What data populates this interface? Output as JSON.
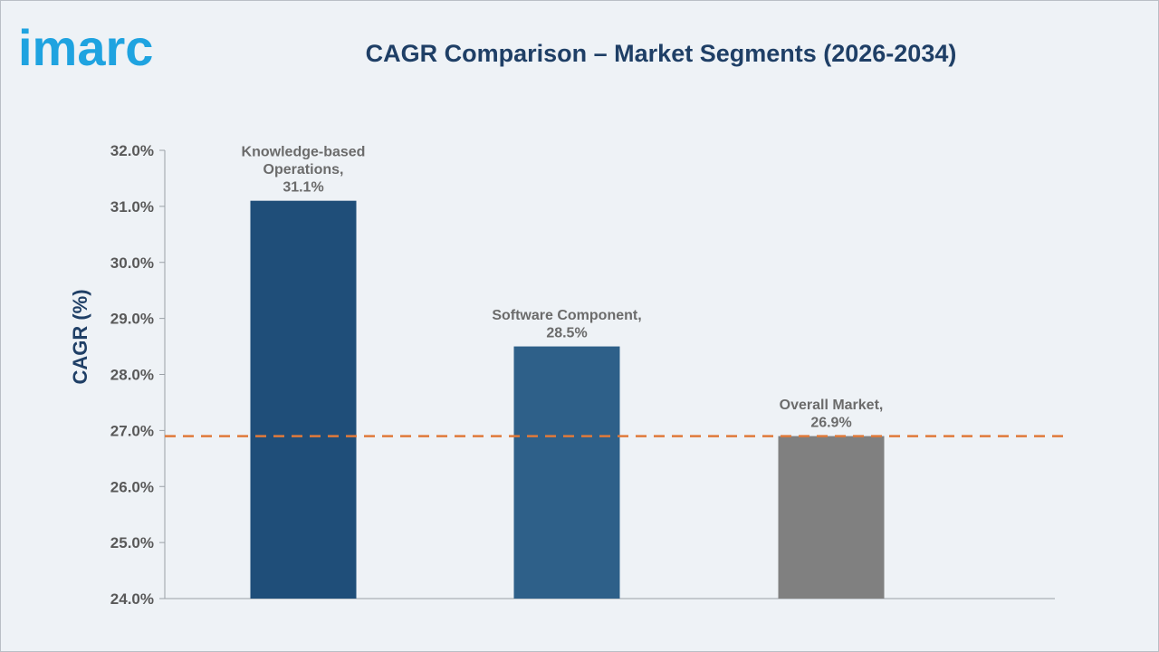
{
  "brand": {
    "name": "imarc",
    "color": "#1fa3e0"
  },
  "header": {
    "title": "CAGR Comparison – Market Segments (2026-2034)"
  },
  "chart_data": {
    "type": "bar",
    "title": "CAGR Comparison – Market Segments (2026-2034)",
    "xlabel": "",
    "ylabel": "CAGR (%)",
    "ylim": [
      24.0,
      32.0
    ],
    "yticks": [
      "24.0%",
      "25.0%",
      "26.0%",
      "27.0%",
      "28.0%",
      "29.0%",
      "30.0%",
      "31.0%",
      "32.0%"
    ],
    "ytick_values": [
      24,
      25,
      26,
      27,
      28,
      29,
      30,
      31,
      32
    ],
    "grid": false,
    "bars": [
      {
        "label_lines": [
          "Knowledge-based",
          "Operations,"
        ],
        "value_label": "31.1%",
        "value": 31.1,
        "color": "#1f4e79"
      },
      {
        "label_lines": [
          "Software Component,"
        ],
        "value_label": "28.5%",
        "value": 28.5,
        "color": "#2e6089"
      },
      {
        "label_lines": [
          "Overall Market,"
        ],
        "value_label": "26.9%",
        "value": 26.9,
        "color": "#808080"
      }
    ],
    "reference_line": {
      "value": 26.9,
      "color": "#e07a3a",
      "style": "dashed"
    }
  }
}
